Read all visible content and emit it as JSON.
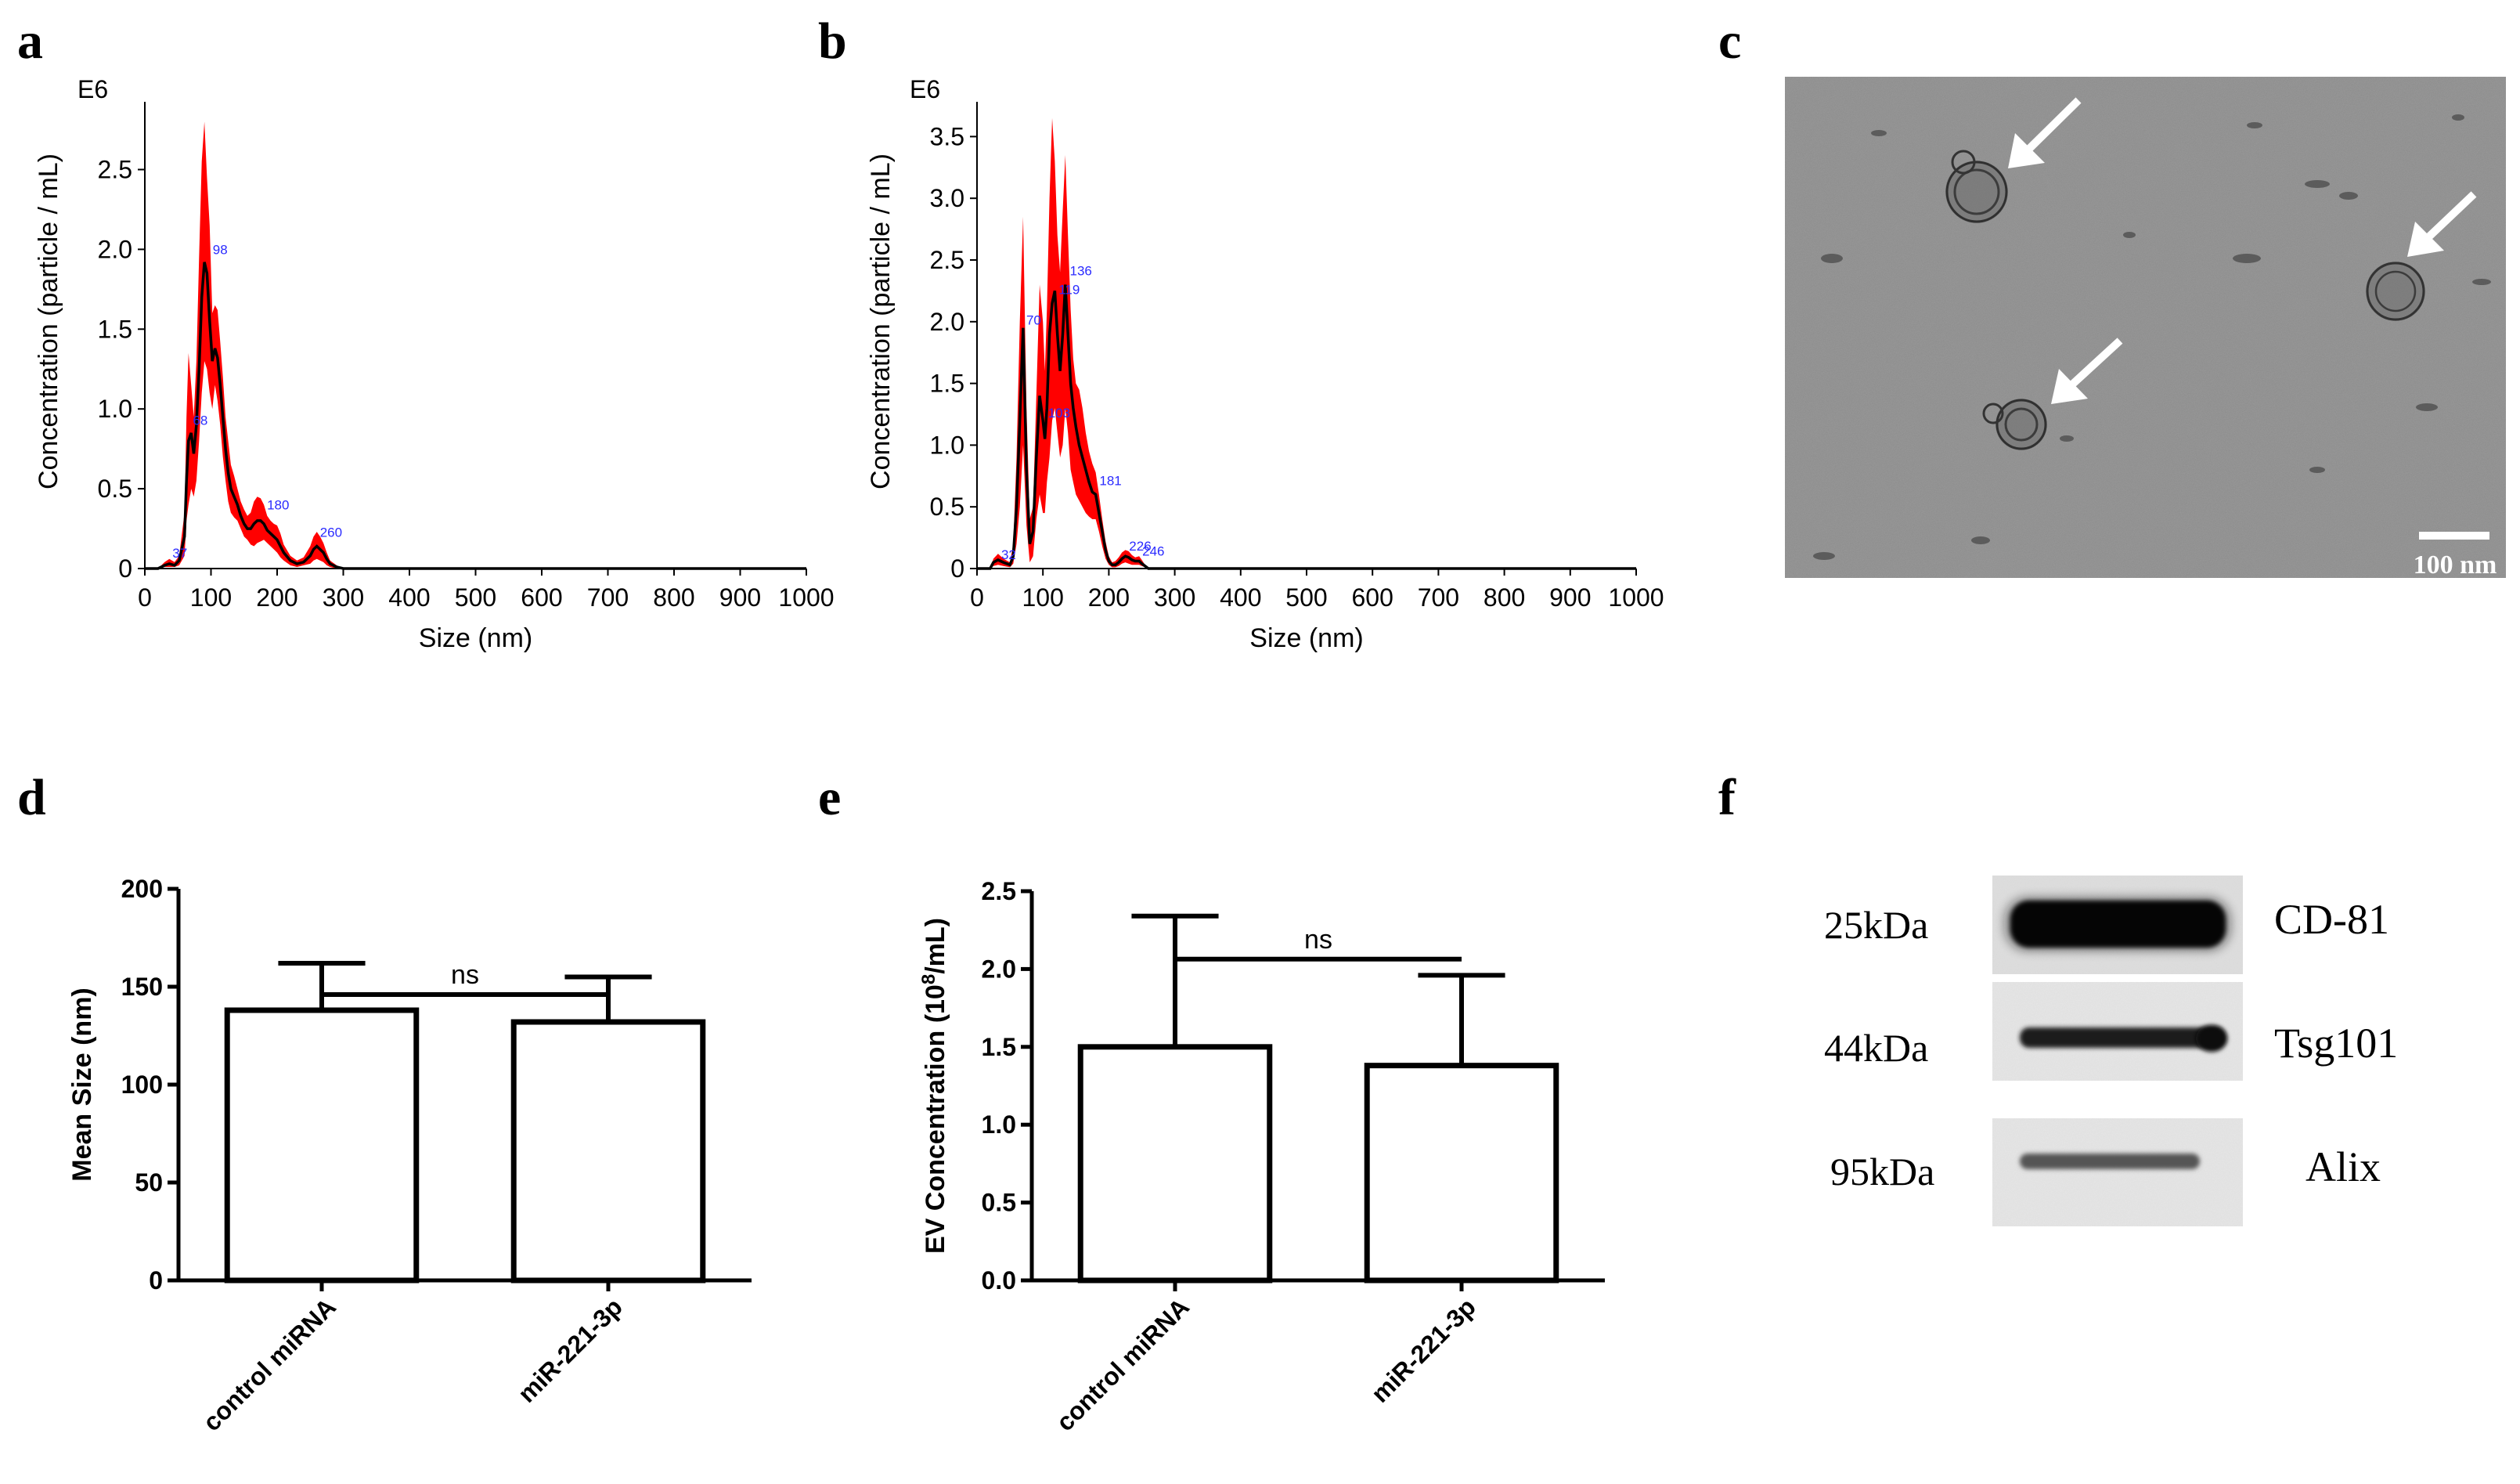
{
  "panels": {
    "a": {
      "label": "a"
    },
    "b": {
      "label": "b"
    },
    "c": {
      "label": "c",
      "scale_bar": "100 nm"
    },
    "d": {
      "label": "d"
    },
    "e": {
      "label": "e"
    },
    "f": {
      "label": "f",
      "rows": [
        {
          "weight": "25kDa",
          "protein": "CD-81"
        },
        {
          "weight": "44kDa",
          "protein": "Tsg101"
        },
        {
          "weight": "95kDa",
          "protein": "Alix"
        }
      ]
    }
  },
  "colors": {
    "band": "#ff0000",
    "line": "#000000",
    "peak_label": "#2b2bff"
  },
  "chart_data": [
    {
      "panel": "a",
      "type": "area",
      "multiplier_label": "E6",
      "xlabel": "Size (nm)",
      "ylabel": "Concentration (particle / mL)",
      "xlim": [
        0,
        1000
      ],
      "ylim": [
        0,
        2.9
      ],
      "xticks": [
        "0",
        "100",
        "200",
        "300",
        "400",
        "500",
        "600",
        "700",
        "800",
        "900",
        "1000"
      ],
      "yticks": [
        "0",
        "0.5",
        "1.0",
        "1.5",
        "2.0",
        "2.5"
      ],
      "peak_labels": [
        {
          "text": "37",
          "x": 37,
          "y": 0.05
        },
        {
          "text": "68",
          "x": 68,
          "y": 0.88
        },
        {
          "text": "98",
          "x": 98,
          "y": 1.95
        },
        {
          "text": "180",
          "x": 180,
          "y": 0.35
        },
        {
          "text": "260",
          "x": 260,
          "y": 0.18
        }
      ],
      "series": [
        {
          "x": [
            0,
            20,
            30,
            37,
            45,
            52,
            60,
            63,
            66,
            70,
            74,
            78,
            82,
            86,
            90,
            94,
            98,
            102,
            106,
            110,
            114,
            118,
            122,
            126,
            130,
            135,
            140,
            145,
            150,
            155,
            160,
            165,
            170,
            175,
            180,
            185,
            190,
            195,
            200,
            205,
            210,
            220,
            230,
            240,
            250,
            255,
            260,
            265,
            270,
            275,
            280,
            290,
            300,
            310,
            1000
          ],
          "mean": [
            0,
            0,
            0.02,
            0.03,
            0.02,
            0.05,
            0.2,
            0.55,
            0.8,
            0.85,
            0.72,
            0.9,
            1.25,
            1.7,
            1.92,
            1.85,
            1.55,
            1.3,
            1.38,
            1.32,
            1.15,
            0.95,
            0.75,
            0.6,
            0.5,
            0.45,
            0.4,
            0.33,
            0.28,
            0.25,
            0.25,
            0.28,
            0.3,
            0.3,
            0.28,
            0.24,
            0.22,
            0.2,
            0.18,
            0.14,
            0.1,
            0.05,
            0.03,
            0.04,
            0.08,
            0.12,
            0.14,
            0.12,
            0.1,
            0.06,
            0.03,
            0.01,
            0,
            0,
            0
          ],
          "upper": [
            0,
            0,
            0.04,
            0.06,
            0.04,
            0.08,
            0.35,
            0.95,
            1.35,
            1.15,
            0.95,
            1.3,
            1.95,
            2.55,
            2.8,
            2.45,
            2.15,
            1.6,
            1.65,
            1.62,
            1.42,
            1.2,
            0.95,
            0.8,
            0.65,
            0.58,
            0.5,
            0.42,
            0.37,
            0.33,
            0.35,
            0.42,
            0.45,
            0.44,
            0.4,
            0.33,
            0.3,
            0.28,
            0.27,
            0.22,
            0.15,
            0.08,
            0.05,
            0.07,
            0.14,
            0.2,
            0.23,
            0.2,
            0.16,
            0.1,
            0.05,
            0.02,
            0,
            0,
            0
          ],
          "lower": [
            0,
            0,
            0.01,
            0.01,
            0.01,
            0.02,
            0.08,
            0.3,
            0.4,
            0.5,
            0.45,
            0.55,
            0.8,
            1.1,
            1.3,
            1.25,
            1.1,
            1.0,
            1.15,
            1.05,
            0.9,
            0.7,
            0.55,
            0.42,
            0.35,
            0.32,
            0.3,
            0.25,
            0.2,
            0.18,
            0.15,
            0.14,
            0.16,
            0.17,
            0.18,
            0.16,
            0.14,
            0.12,
            0.1,
            0.07,
            0.05,
            0.02,
            0.01,
            0.02,
            0.03,
            0.05,
            0.06,
            0.05,
            0.04,
            0.02,
            0.01,
            0,
            0,
            0,
            0
          ]
        }
      ]
    },
    {
      "panel": "b",
      "type": "area",
      "multiplier_label": "E6",
      "xlabel": "Size (nm)",
      "ylabel": "Concentration (particle / mL)",
      "xlim": [
        0,
        1000
      ],
      "ylim": [
        0,
        3.75
      ],
      "xticks": [
        "0",
        "100",
        "200",
        "300",
        "400",
        "500",
        "600",
        "700",
        "800",
        "900",
        "1000"
      ],
      "yticks": [
        "0",
        "0.5",
        "1.0",
        "1.5",
        "2.0",
        "2.5",
        "3.0",
        "3.5"
      ],
      "peak_labels": [
        {
          "text": "32",
          "x": 32,
          "y": 0.05
        },
        {
          "text": "70",
          "x": 70,
          "y": 1.95
        },
        {
          "text": "103",
          "x": 103,
          "y": 1.2
        },
        {
          "text": "119",
          "x": 119,
          "y": 2.2
        },
        {
          "text": "136",
          "x": 136,
          "y": 2.35
        },
        {
          "text": "181",
          "x": 181,
          "y": 0.65
        },
        {
          "text": "226",
          "x": 226,
          "y": 0.12
        },
        {
          "text": "246",
          "x": 246,
          "y": 0.08
        }
      ],
      "series": [
        {
          "x": [
            0,
            20,
            25,
            32,
            40,
            50,
            55,
            60,
            65,
            70,
            75,
            80,
            85,
            90,
            95,
            100,
            103,
            106,
            110,
            114,
            118,
            122,
            126,
            130,
            134,
            138,
            142,
            146,
            150,
            155,
            160,
            165,
            170,
            175,
            180,
            185,
            190,
            195,
            200,
            205,
            210,
            215,
            220,
            225,
            230,
            235,
            240,
            246,
            250,
            255,
            260,
            1000
          ],
          "mean": [
            0,
            0,
            0.05,
            0.07,
            0.05,
            0.03,
            0.1,
            0.5,
            1.2,
            1.95,
            0.8,
            0.2,
            0.3,
            0.9,
            1.4,
            1.2,
            1.05,
            1.3,
            1.9,
            2.15,
            2.25,
            1.9,
            1.6,
            1.9,
            2.3,
            1.9,
            1.5,
            1.3,
            1.15,
            1.0,
            0.9,
            0.8,
            0.7,
            0.62,
            0.6,
            0.45,
            0.3,
            0.15,
            0.06,
            0.03,
            0.03,
            0.05,
            0.08,
            0.1,
            0.09,
            0.07,
            0.06,
            0.06,
            0.04,
            0.02,
            0,
            0
          ],
          "upper": [
            0,
            0,
            0.08,
            0.12,
            0.08,
            0.05,
            0.2,
            0.9,
            2.0,
            2.85,
            1.3,
            0.4,
            0.5,
            1.4,
            2.3,
            2.0,
            1.6,
            2.1,
            3.0,
            3.65,
            3.3,
            2.7,
            2.4,
            2.9,
            3.35,
            2.7,
            2.1,
            1.7,
            1.5,
            1.45,
            1.3,
            1.1,
            0.95,
            0.85,
            0.78,
            0.6,
            0.4,
            0.22,
            0.1,
            0.05,
            0.06,
            0.09,
            0.13,
            0.15,
            0.14,
            0.11,
            0.09,
            0.1,
            0.07,
            0.03,
            0,
            0
          ],
          "lower": [
            0,
            0,
            0.02,
            0.03,
            0.02,
            0.01,
            0.04,
            0.2,
            0.5,
            1.0,
            0.35,
            0.05,
            0.1,
            0.4,
            0.6,
            0.45,
            0.45,
            0.7,
            0.9,
            1.2,
            1.3,
            1.1,
            0.9,
            1.0,
            1.3,
            1.1,
            0.8,
            0.7,
            0.6,
            0.55,
            0.5,
            0.45,
            0.42,
            0.4,
            0.4,
            0.3,
            0.18,
            0.08,
            0.03,
            0.01,
            0.01,
            0.02,
            0.04,
            0.05,
            0.04,
            0.03,
            0.03,
            0.03,
            0.02,
            0.01,
            0,
            0
          ]
        }
      ]
    },
    {
      "panel": "d",
      "type": "bar",
      "categories": [
        "control miRNA",
        "miR-221-3p"
      ],
      "values": [
        138,
        132
      ],
      "errors": [
        24,
        23
      ],
      "ylabel": "Mean Size (nm)",
      "ylim": [
        0,
        200
      ],
      "yticks": [
        "0",
        "50",
        "100",
        "150",
        "200"
      ],
      "significance": "ns"
    },
    {
      "panel": "e",
      "type": "bar",
      "categories": [
        "control miRNA",
        "miR-221-3p"
      ],
      "values": [
        1.5,
        1.38
      ],
      "errors": [
        0.84,
        0.58
      ],
      "ylabel_main": "EV Concentration (10",
      "ylabel_sup": "8",
      "ylabel_tail": "/mL)",
      "ylim": [
        0,
        2.5
      ],
      "yticks": [
        "0.0",
        "0.5",
        "1.0",
        "1.5",
        "2.0",
        "2.5"
      ],
      "significance": "ns"
    }
  ]
}
